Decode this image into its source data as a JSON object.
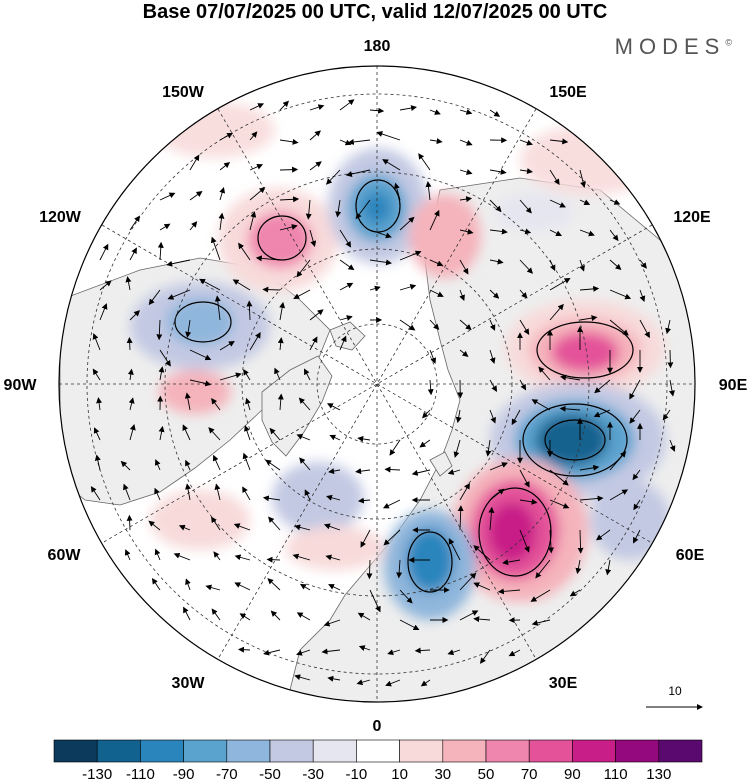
{
  "title": "Base 07/07/2025 00 UTC, valid 12/07/2025 00 UTC",
  "brand": "MODES",
  "brand_mark": "©",
  "map_labels": {
    "lon_180": "180",
    "lon_150w": "150W",
    "lon_150e": "150E",
    "lon_120w": "120W",
    "lon_120e": "120E",
    "lon_90w": "90W",
    "lon_90e": "90E",
    "lon_60w": "60W",
    "lon_60e": "60E",
    "lon_30w": "30W",
    "lon_30e": "30E",
    "lon_0": "0"
  },
  "reference_vector": {
    "label": "10"
  },
  "colorbar": {
    "colors": [
      "#0b3a5c",
      "#12628f",
      "#2a85bd",
      "#5ba3cf",
      "#8fb6dc",
      "#c3c9e3",
      "#e6e6f0",
      "#ffffff",
      "#f8dada",
      "#f5b3bb",
      "#ef86ad",
      "#e4539a",
      "#c81e87",
      "#95097e",
      "#5a0a6e"
    ],
    "tick_labels": [
      "-130",
      "-110",
      "-90",
      "-70",
      "-50",
      "-30",
      "-10",
      "10",
      "30",
      "50",
      "70",
      "90",
      "110",
      "130"
    ]
  },
  "colors": {
    "land": "#eeeeee",
    "coast": "#555555"
  }
}
